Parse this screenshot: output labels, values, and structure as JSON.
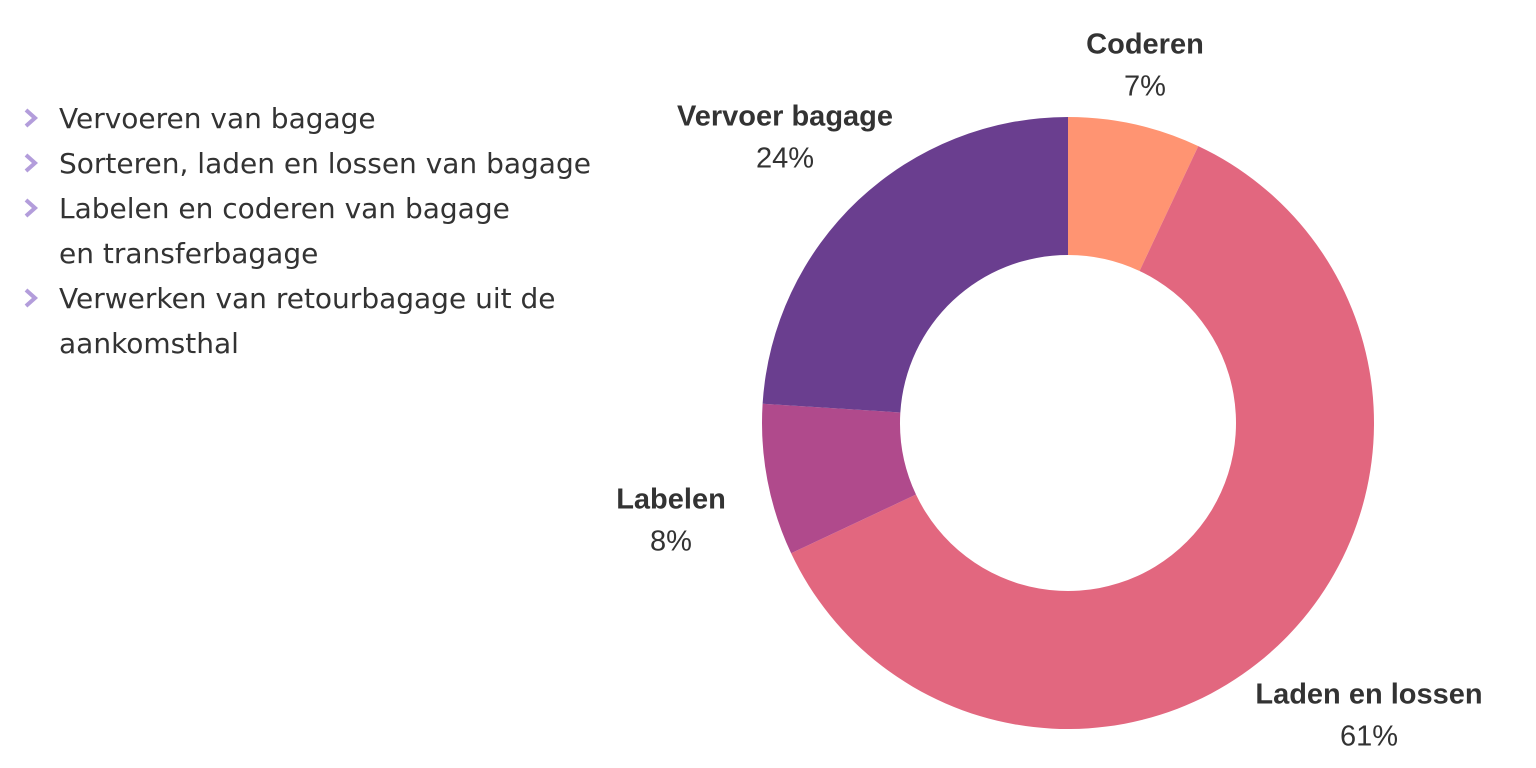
{
  "bullets": [
    "Vervoeren van bagage",
    "Sorteren, laden en lossen van bagage",
    "Labelen en coderen van bagage",
    "en transferbagage",
    "Verwerken van retourbagage uit de",
    "aankomsthal"
  ],
  "bullet_marker_color": "#b39ddb",
  "chart_data": {
    "type": "pie",
    "variant": "donut",
    "start": "top",
    "direction": "clockwise",
    "slices": [
      {
        "label": "Coderen",
        "value": 7,
        "value_label": "7%",
        "color": "#ff9472"
      },
      {
        "label": "Laden en lossen",
        "value": 61,
        "value_label": "61%",
        "color": "#e2677f"
      },
      {
        "label": "Labelen",
        "value": 8,
        "value_label": "8%",
        "color": "#b04a8c"
      },
      {
        "label": "Vervoer bagage",
        "value": 24,
        "value_label": "24%",
        "color": "#6a3e8f"
      }
    ]
  }
}
